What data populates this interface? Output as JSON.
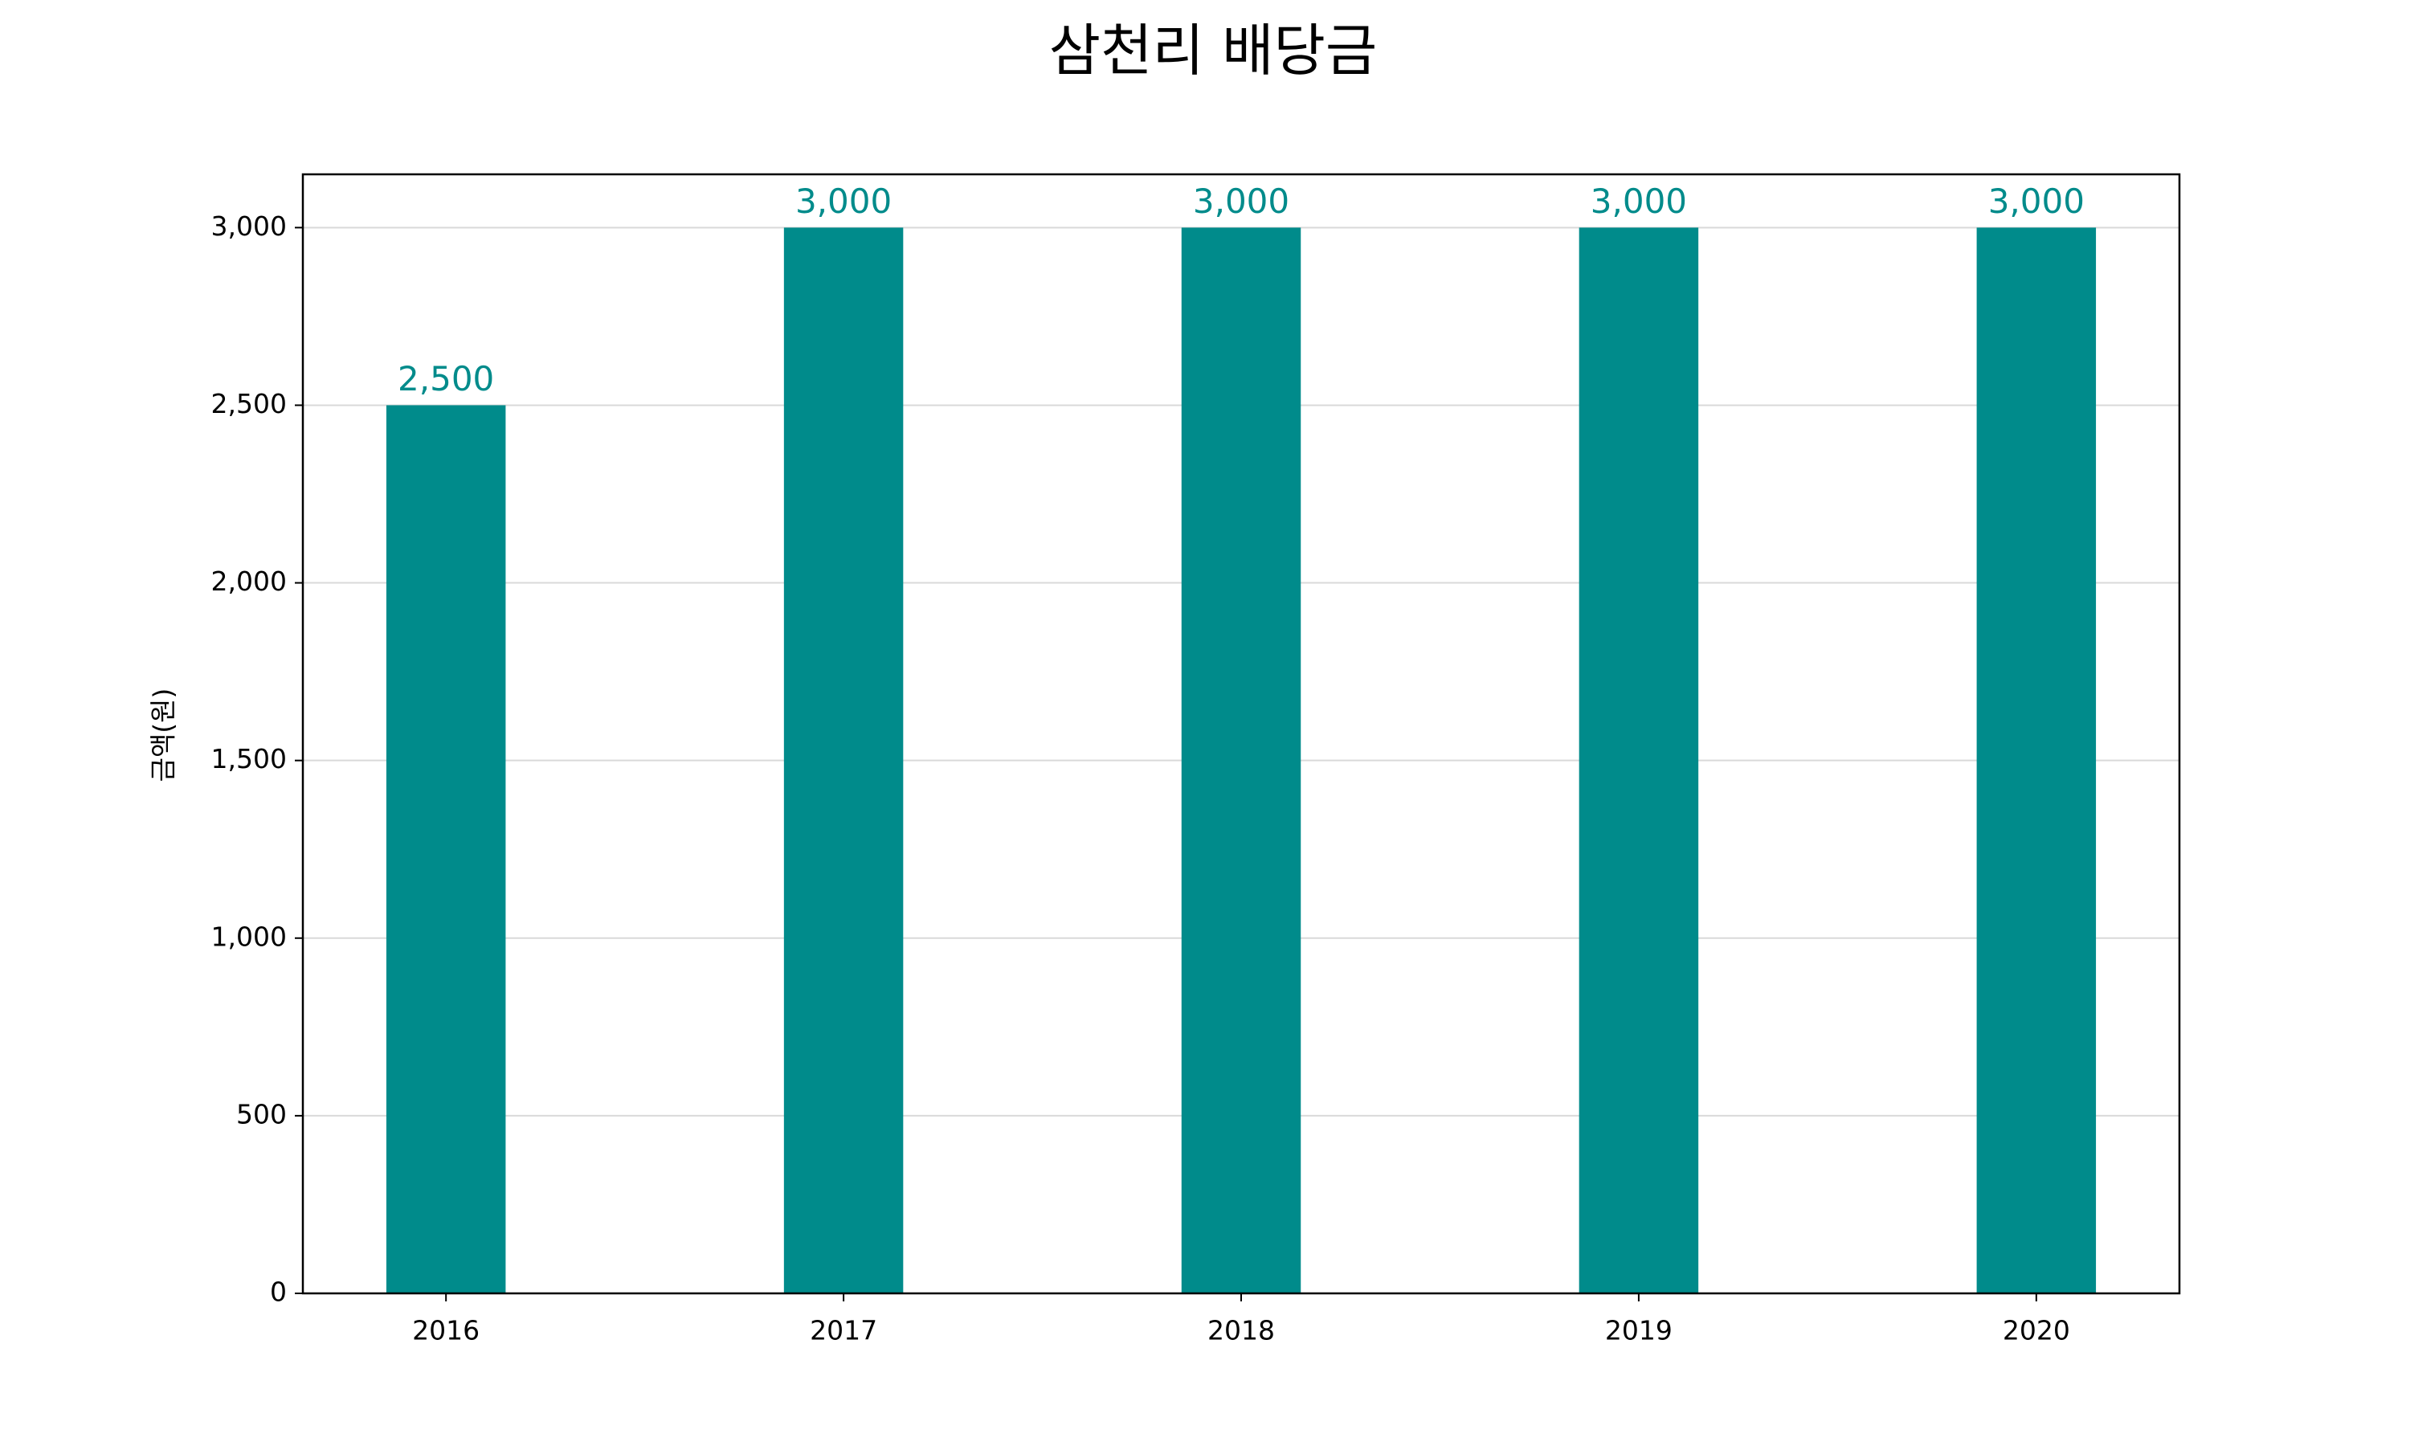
{
  "chart_data": {
    "type": "bar",
    "title": "삼천리 배당금",
    "y_label": "금액(원)",
    "categories": [
      "2016",
      "2017",
      "2018",
      "2019",
      "2020"
    ],
    "values": [
      2500,
      3000,
      3000,
      3000,
      3000
    ],
    "value_labels": [
      "2,500",
      "3,000",
      "3,000",
      "3,000",
      "3,000"
    ],
    "color": "#008b8b",
    "ylim": [
      0,
      3150
    ],
    "yticks": [
      0,
      500,
      {
        "value": 1000,
        "label": "1,000"
      },
      {
        "value": 1500,
        "label": "1,500"
      },
      {
        "value": 2000,
        "label": "2,000"
      },
      {
        "value": 2500,
        "label": "2,500"
      },
      {
        "value": 3000,
        "label": "3,000"
      }
    ],
    "grid": true
  }
}
